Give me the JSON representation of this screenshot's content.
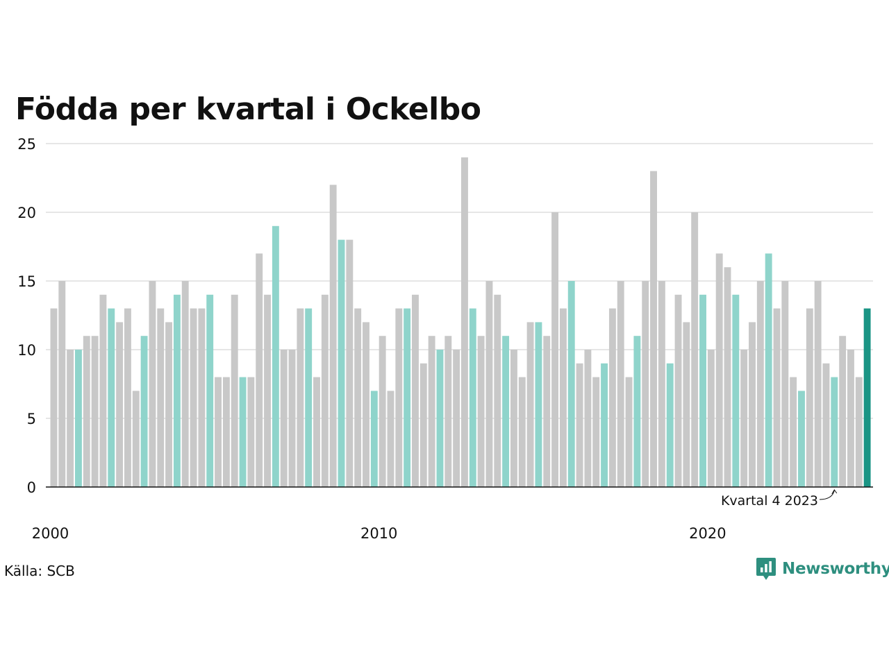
{
  "chart_data": {
    "type": "bar",
    "title": "Födda per kvartal i Ockelbo",
    "xlabel": "",
    "ylabel": "",
    "ylim": [
      0,
      25
    ],
    "yticks": [
      "0",
      "5",
      "10",
      "15",
      "20",
      "25"
    ],
    "xticks": [
      "2000",
      "2010",
      "2020"
    ],
    "grid": true,
    "colors": {
      "default": "#c8c8c8",
      "quarter4": "#8fd4cb",
      "latest": "#1b9585",
      "grid": "#dddddd",
      "axis": "#111111"
    },
    "annotation": "Kvartal 4 2023",
    "values": [
      13,
      15,
      10,
      10,
      11,
      11,
      14,
      13,
      12,
      13,
      7,
      11,
      15,
      13,
      12,
      14,
      15,
      13,
      13,
      14,
      8,
      8,
      14,
      8,
      8,
      17,
      14,
      19,
      10,
      10,
      13,
      13,
      8,
      14,
      22,
      18,
      18,
      13,
      12,
      7,
      11,
      7,
      13,
      13,
      14,
      9,
      11,
      10,
      11,
      10,
      24,
      13,
      11,
      15,
      14,
      11,
      10,
      8,
      12,
      12,
      11,
      20,
      13,
      15,
      9,
      10,
      8,
      9,
      13,
      15,
      8,
      11,
      15,
      23,
      15,
      9,
      14,
      12,
      20,
      14,
      10,
      17,
      16,
      14,
      10,
      12,
      15,
      17,
      13,
      15,
      8,
      7,
      13,
      15,
      9,
      8,
      11,
      10,
      8,
      13
    ]
  },
  "footer": {
    "source": "Källa: SCB",
    "brand": "Newsworthy",
    "logo_icon": "newsworthy-logo-icon"
  }
}
